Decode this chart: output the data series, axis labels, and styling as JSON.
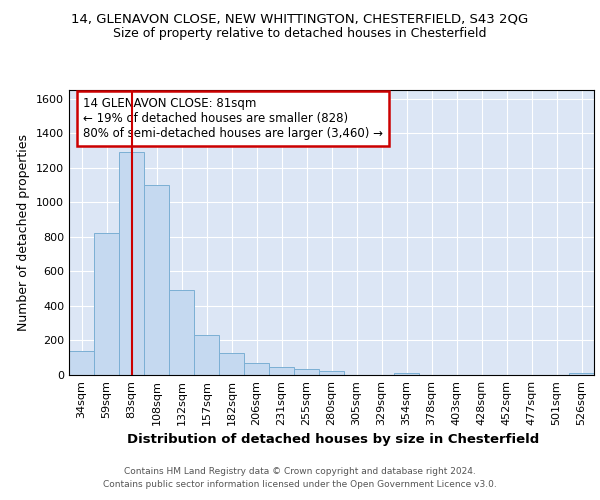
{
  "title_line1": "14, GLENAVON CLOSE, NEW WHITTINGTON, CHESTERFIELD, S43 2QG",
  "title_line2": "Size of property relative to detached houses in Chesterfield",
  "xlabel": "Distribution of detached houses by size in Chesterfield",
  "ylabel": "Number of detached properties",
  "bar_color": "#c5d9f0",
  "bar_edge_color": "#7bafd4",
  "background_color": "#dce6f5",
  "grid_color": "#ffffff",
  "categories": [
    "34sqm",
    "59sqm",
    "83sqm",
    "108sqm",
    "132sqm",
    "157sqm",
    "182sqm",
    "206sqm",
    "231sqm",
    "255sqm",
    "280sqm",
    "305sqm",
    "329sqm",
    "354sqm",
    "378sqm",
    "403sqm",
    "428sqm",
    "452sqm",
    "477sqm",
    "501sqm",
    "526sqm"
  ],
  "values": [
    140,
    820,
    1290,
    1100,
    490,
    230,
    130,
    70,
    48,
    32,
    22,
    0,
    0,
    14,
    0,
    0,
    0,
    0,
    0,
    0,
    14
  ],
  "ylim": [
    0,
    1650
  ],
  "yticks": [
    0,
    200,
    400,
    600,
    800,
    1000,
    1200,
    1400,
    1600
  ],
  "vline_x": 2,
  "vline_color": "#cc0000",
  "annotation_text": "14 GLENAVON CLOSE: 81sqm\n← 19% of detached houses are smaller (828)\n80% of semi-detached houses are larger (3,460) →",
  "annotation_box_color": "#ffffff",
  "annotation_box_edge": "#cc0000",
  "footer_line1": "Contains HM Land Registry data © Crown copyright and database right 2024.",
  "footer_line2": "Contains public sector information licensed under the Open Government Licence v3.0.",
  "title_fontsize": 9.5,
  "subtitle_fontsize": 9,
  "tick_fontsize": 8,
  "ylabel_fontsize": 9,
  "xlabel_fontsize": 9.5,
  "annot_fontsize": 8.5,
  "footer_fontsize": 6.5
}
